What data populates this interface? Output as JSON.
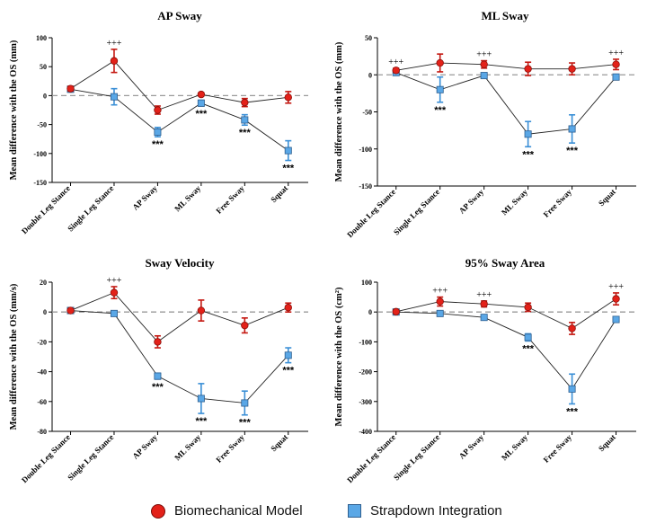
{
  "chart_data": [
    {
      "type": "line",
      "title": "AP Sway",
      "ylabel": "Mean difference with the OS (mm)",
      "ylim": [
        -150,
        100
      ],
      "yticks": [
        -150,
        -100,
        -50,
        0,
        50,
        100
      ],
      "ytick_labels": [
        "-150",
        "-100",
        "-50",
        "0",
        "50",
        "100"
      ],
      "categories": [
        "Double Leg Stance",
        "Single Leg Stance",
        "AP Sway",
        "ML Sway",
        "Free Sway",
        "Squat"
      ],
      "series": [
        {
          "name": "Biomechanical Model",
          "values": [
            12,
            60,
            -25,
            2,
            -12,
            -3
          ],
          "errors": [
            4,
            20,
            7,
            3,
            7,
            10
          ]
        },
        {
          "name": "Strapdown Integration",
          "values": [
            11,
            -2,
            -63,
            -13,
            -42,
            -95
          ],
          "errors": [
            3,
            14,
            8,
            5,
            9,
            17
          ]
        }
      ],
      "annotations": [
        {
          "category": "Single Leg Stance",
          "text": "+++",
          "position": "above"
        },
        {
          "category": "AP Sway",
          "text": "***",
          "position": "below"
        },
        {
          "category": "ML Sway",
          "text": "***",
          "position": "below"
        },
        {
          "category": "Free Sway",
          "text": "***",
          "position": "below"
        },
        {
          "category": "Squat",
          "text": "***",
          "position": "below"
        }
      ]
    },
    {
      "type": "line",
      "title": "ML Sway",
      "ylabel": "Mean difference with the OS (mm)",
      "ylim": [
        -150,
        50
      ],
      "yticks": [
        -150,
        -100,
        -50,
        0,
        50
      ],
      "ytick_labels": [
        "-150",
        "-100",
        "-50",
        "0",
        "50"
      ],
      "categories": [
        "Double Leg Stance",
        "Single Leg Stance",
        "AP Sway",
        "ML Sway",
        "Free Sway",
        "Squat"
      ],
      "series": [
        {
          "name": "Biomechanical Model",
          "values": [
            6,
            16,
            14,
            8,
            8,
            14
          ],
          "errors": [
            3,
            12,
            5,
            9,
            8,
            7
          ]
        },
        {
          "name": "Strapdown Integration",
          "values": [
            3,
            -20,
            -1,
            -80,
            -73,
            -3
          ],
          "errors": [
            3,
            17,
            3,
            17,
            19,
            3
          ]
        }
      ],
      "annotations": [
        {
          "category": "Double Leg Stance",
          "text": "+++",
          "position": "above"
        },
        {
          "category": "Single Leg Stance",
          "text": "***",
          "position": "below"
        },
        {
          "category": "AP Sway",
          "text": "+++",
          "position": "above"
        },
        {
          "category": "ML Sway",
          "text": "***",
          "position": "below"
        },
        {
          "category": "Free Sway",
          "text": "***",
          "position": "below"
        },
        {
          "category": "Squat",
          "text": "+++",
          "position": "above"
        }
      ]
    },
    {
      "type": "line",
      "title": "Sway Velocity",
      "ylabel": "Mean difference with the OS (mm/s)",
      "ylim": [
        -80,
        20
      ],
      "yticks": [
        -80,
        -60,
        -40,
        -20,
        0,
        20
      ],
      "ytick_labels": [
        "-80",
        "-60",
        "-40",
        "-20",
        "0",
        "20"
      ],
      "categories": [
        "Double Leg Stance",
        "Single Leg Stance",
        "AP Sway",
        "ML Sway",
        "Free Sway",
        "Squat"
      ],
      "series": [
        {
          "name": "Biomechanical Model",
          "values": [
            1,
            13,
            -20,
            1,
            -9,
            3
          ],
          "errors": [
            1,
            4,
            4,
            7,
            5,
            3
          ]
        },
        {
          "name": "Strapdown Integration",
          "values": [
            1,
            -1,
            -43,
            -58,
            -61,
            -29
          ],
          "errors": [
            1,
            1,
            2,
            10,
            8,
            5
          ]
        }
      ],
      "annotations": [
        {
          "category": "Single Leg Stance",
          "text": "+++",
          "position": "above"
        },
        {
          "category": "AP Sway",
          "text": "***",
          "position": "below"
        },
        {
          "category": "ML Sway",
          "text": "***",
          "position": "below"
        },
        {
          "category": "Free Sway",
          "text": "***",
          "position": "below"
        },
        {
          "category": "Squat",
          "text": "***",
          "position": "below"
        }
      ]
    },
    {
      "type": "line",
      "title": "95% Sway Area",
      "ylabel": "Mean difference with the OS (cm²)",
      "ylim": [
        -400,
        100
      ],
      "yticks": [
        -400,
        -300,
        -200,
        -100,
        0,
        100
      ],
      "ytick_labels": [
        "-400",
        "-300",
        "-200",
        "-100",
        "0",
        "100"
      ],
      "categories": [
        "Double Leg Stance",
        "Single Leg Stance",
        "AP Sway",
        "ML Sway",
        "Free Sway",
        "Squat"
      ],
      "series": [
        {
          "name": "Biomechanical Model",
          "values": [
            1,
            35,
            27,
            16,
            -55,
            44
          ],
          "errors": [
            5,
            15,
            10,
            14,
            20,
            20
          ]
        },
        {
          "name": "Strapdown Integration",
          "values": [
            0,
            -5,
            -18,
            -85,
            -258,
            -25
          ],
          "errors": [
            3,
            4,
            6,
            12,
            50,
            7
          ]
        }
      ],
      "annotations": [
        {
          "category": "Single Leg Stance",
          "text": "+++",
          "position": "above"
        },
        {
          "category": "AP Sway",
          "text": "+++",
          "position": "above"
        },
        {
          "category": "ML Sway",
          "text": "***",
          "position": "below"
        },
        {
          "category": "Free Sway",
          "text": "***",
          "position": "below"
        },
        {
          "category": "Squat",
          "text": "+++",
          "position": "above"
        }
      ]
    }
  ],
  "legend": {
    "items": [
      {
        "label": "Biomechanical Model",
        "color": "#e32119",
        "marker": "circle"
      },
      {
        "label": "Strapdown Integration",
        "color": "#5aa7e6",
        "marker": "square"
      }
    ]
  },
  "colors": {
    "biomechanical": "#e32119",
    "strapdown": "#5aa7e6",
    "errorbar_bio": "#c41710",
    "errorbar_strap": "#3a8fd6",
    "zero_line": "#9a9a9a"
  }
}
